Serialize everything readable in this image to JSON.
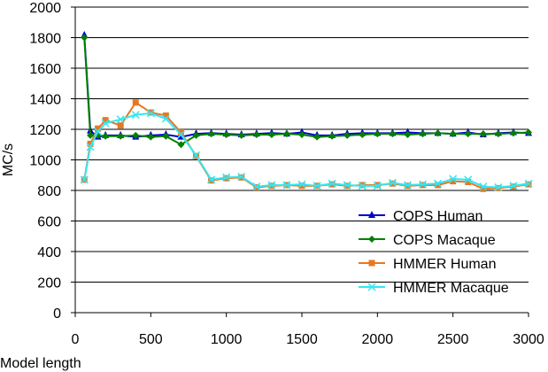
{
  "chart_data": {
    "type": "line",
    "xlabel": "Model length",
    "ylabel": "MC/s",
    "xlim": [
      0,
      3000
    ],
    "ylim": [
      0,
      2000
    ],
    "xticks": [
      0,
      500,
      1000,
      1500,
      2000,
      2500,
      3000
    ],
    "yticks": [
      0,
      200,
      400,
      600,
      800,
      1000,
      1200,
      1400,
      1600,
      1800,
      2000
    ],
    "grid": "horizontal",
    "legend_position": "bottom-right",
    "series": [
      {
        "name": "COPS Human",
        "color": "#0000cc",
        "marker": "triangle",
        "x": [
          60,
          100,
          150,
          200,
          300,
          400,
          500,
          600,
          700,
          800,
          900,
          1000,
          1100,
          1200,
          1300,
          1400,
          1500,
          1600,
          1700,
          1800,
          1900,
          2000,
          2100,
          2200,
          2300,
          2400,
          2500,
          2600,
          2700,
          2800,
          2900,
          3000
        ],
        "y": [
          1815,
          1190,
          1150,
          1160,
          1160,
          1150,
          1160,
          1165,
          1150,
          1170,
          1175,
          1170,
          1165,
          1170,
          1175,
          1170,
          1180,
          1160,
          1160,
          1170,
          1175,
          1175,
          1175,
          1180,
          1175,
          1175,
          1170,
          1180,
          1165,
          1175,
          1180,
          1175
        ]
      },
      {
        "name": "COPS Macaque",
        "color": "#008000",
        "marker": "diamond",
        "x": [
          60,
          100,
          150,
          200,
          300,
          400,
          500,
          600,
          700,
          800,
          900,
          1000,
          1100,
          1200,
          1300,
          1400,
          1500,
          1600,
          1700,
          1800,
          1900,
          2000,
          2100,
          2200,
          2300,
          2400,
          2500,
          2600,
          2700,
          2800,
          2900,
          3000
        ],
        "y": [
          1800,
          1160,
          1160,
          1155,
          1155,
          1160,
          1150,
          1155,
          1100,
          1160,
          1170,
          1165,
          1160,
          1165,
          1165,
          1170,
          1165,
          1150,
          1155,
          1160,
          1165,
          1170,
          1170,
          1165,
          1170,
          1175,
          1170,
          1170,
          1170,
          1170,
          1175,
          1180
        ]
      },
      {
        "name": "HMMER Human",
        "color": "#e87722",
        "marker": "square",
        "x": [
          60,
          100,
          150,
          200,
          300,
          400,
          500,
          600,
          700,
          800,
          900,
          1000,
          1100,
          1200,
          1300,
          1400,
          1500,
          1600,
          1700,
          1800,
          1900,
          2000,
          2100,
          2200,
          2300,
          2400,
          2500,
          2600,
          2700,
          2800,
          2900,
          3000
        ],
        "y": [
          870,
          1105,
          1205,
          1260,
          1225,
          1375,
          1310,
          1290,
          1180,
          1025,
          865,
          880,
          885,
          820,
          830,
          835,
          830,
          830,
          840,
          830,
          835,
          835,
          845,
          830,
          835,
          835,
          860,
          855,
          810,
          815,
          825,
          840
        ]
      },
      {
        "name": "HMMER Macaque",
        "color": "#33e6f2",
        "marker": "x",
        "x": [
          60,
          100,
          150,
          200,
          300,
          400,
          500,
          600,
          700,
          800,
          900,
          1000,
          1100,
          1200,
          1300,
          1400,
          1500,
          1600,
          1700,
          1800,
          1900,
          2000,
          2100,
          2200,
          2300,
          2400,
          2500,
          2600,
          2700,
          2800,
          2900,
          3000
        ],
        "y": [
          870,
          1085,
          1185,
          1240,
          1265,
          1295,
          1305,
          1270,
          1165,
          1030,
          870,
          885,
          890,
          825,
          835,
          835,
          840,
          830,
          845,
          835,
          830,
          830,
          850,
          835,
          840,
          845,
          875,
          870,
          825,
          820,
          830,
          845
        ]
      }
    ]
  }
}
